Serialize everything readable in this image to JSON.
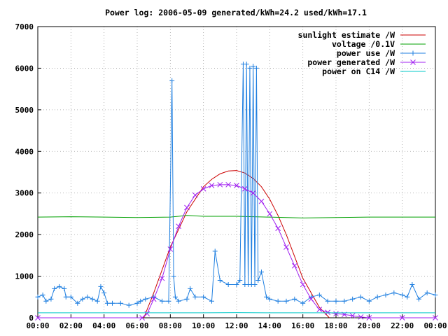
{
  "chart_data": {
    "type": "line",
    "title": "Power log: 2006-05-09 generated/kWh=24.2 used/kWh=17.1",
    "xlabel": "",
    "ylabel": "",
    "xlim": [
      0,
      24
    ],
    "ylim": [
      0,
      7000
    ],
    "x_ticks": [
      "00:00",
      "02:00",
      "04:00",
      "06:00",
      "08:00",
      "10:00",
      "12:00",
      "14:00",
      "16:00",
      "18:00",
      "20:00",
      "22:00",
      "00:00"
    ],
    "y_ticks": [
      "0",
      "1000",
      "2000",
      "3000",
      "4000",
      "5000",
      "6000",
      "7000"
    ],
    "grid": true,
    "legend_position": "top-right",
    "series": [
      {
        "name": "sunlight estimate /W",
        "color": "#cc0000",
        "marker": "none",
        "x": [
          6.4,
          7.0,
          8.0,
          9.0,
          10.0,
          10.5,
          11.0,
          11.5,
          12.0,
          12.5,
          13.0,
          13.5,
          14.0,
          14.5,
          15.0,
          16.0,
          17.0,
          17.6
        ],
        "y": [
          0,
          600,
          1700,
          2550,
          3150,
          3330,
          3460,
          3530,
          3540,
          3480,
          3350,
          3150,
          2850,
          2460,
          2000,
          950,
          250,
          0
        ]
      },
      {
        "name": "voltage /0.1V",
        "color": "#00a000",
        "marker": "none",
        "x": [
          0,
          2,
          4,
          6,
          8,
          9,
          10,
          12,
          14,
          16,
          18,
          20,
          22,
          24
        ],
        "y": [
          2420,
          2430,
          2420,
          2410,
          2420,
          2460,
          2440,
          2440,
          2420,
          2400,
          2410,
          2420,
          2420,
          2420
        ]
      },
      {
        "name": "power use /W",
        "color": "#1f7fe0",
        "marker": "plus",
        "x": [
          0,
          0.3,
          0.5,
          0.8,
          1.0,
          1.3,
          1.6,
          1.7,
          2.0,
          2.4,
          2.7,
          3.0,
          3.3,
          3.6,
          3.8,
          4.0,
          4.2,
          4.5,
          5.0,
          5.5,
          6.0,
          6.2,
          6.5,
          7.0,
          7.5,
          7.9,
          8.1,
          8.2,
          8.3,
          8.5,
          9.0,
          9.2,
          9.5,
          10.0,
          10.5,
          10.7,
          11.0,
          11.5,
          12.0,
          12.2,
          12.4,
          12.5,
          12.6,
          12.7,
          12.8,
          12.9,
          13.0,
          13.1,
          13.2,
          13.3,
          13.5,
          13.8,
          14.0,
          14.5,
          15.0,
          15.5,
          16.0,
          16.5,
          17.0,
          17.5,
          18.0,
          18.5,
          19.0,
          19.5,
          20.0,
          20.5,
          21.0,
          21.5,
          22.0,
          22.3,
          22.6,
          23.0,
          23.5,
          24.0
        ],
        "y": [
          500,
          550,
          400,
          450,
          700,
          750,
          700,
          500,
          500,
          350,
          450,
          500,
          450,
          400,
          750,
          600,
          350,
          350,
          350,
          300,
          350,
          400,
          450,
          500,
          400,
          400,
          5700,
          1000,
          500,
          400,
          450,
          700,
          500,
          500,
          400,
          1600,
          900,
          800,
          800,
          900,
          6100,
          800,
          6100,
          800,
          6000,
          800,
          6050,
          800,
          6000,
          900,
          1100,
          500,
          450,
          400,
          400,
          450,
          350,
          500,
          550,
          400,
          400,
          400,
          450,
          500,
          400,
          500,
          550,
          600,
          550,
          500,
          800,
          450,
          600,
          550
        ]
      },
      {
        "name": "power generated /W",
        "color": "#a020f0",
        "marker": "cross",
        "x": [
          0,
          6.3,
          6.6,
          7.0,
          7.5,
          8.0,
          8.5,
          9.0,
          9.5,
          10.0,
          10.5,
          11.0,
          11.5,
          12.0,
          12.5,
          13.0,
          13.5,
          14.0,
          14.5,
          15.0,
          15.5,
          16.0,
          16.5,
          17.0,
          17.5,
          18.0,
          18.5,
          19.0,
          19.5,
          20.0,
          22.0,
          24.0
        ],
        "y": [
          0,
          0,
          100,
          450,
          950,
          1650,
          2200,
          2650,
          2950,
          3100,
          3180,
          3200,
          3200,
          3180,
          3100,
          3000,
          2800,
          2500,
          2150,
          1700,
          1250,
          800,
          450,
          200,
          130,
          100,
          80,
          50,
          20,
          0,
          0,
          0
        ]
      },
      {
        "name": "power on C14 /W",
        "color": "#00c8c8",
        "marker": "none",
        "x": [
          0,
          2,
          4,
          6,
          8,
          10,
          12,
          14,
          16,
          18,
          20,
          22,
          24
        ],
        "y": [
          120,
          120,
          120,
          120,
          120,
          120,
          125,
          120,
          120,
          120,
          120,
          120,
          120
        ]
      }
    ]
  }
}
